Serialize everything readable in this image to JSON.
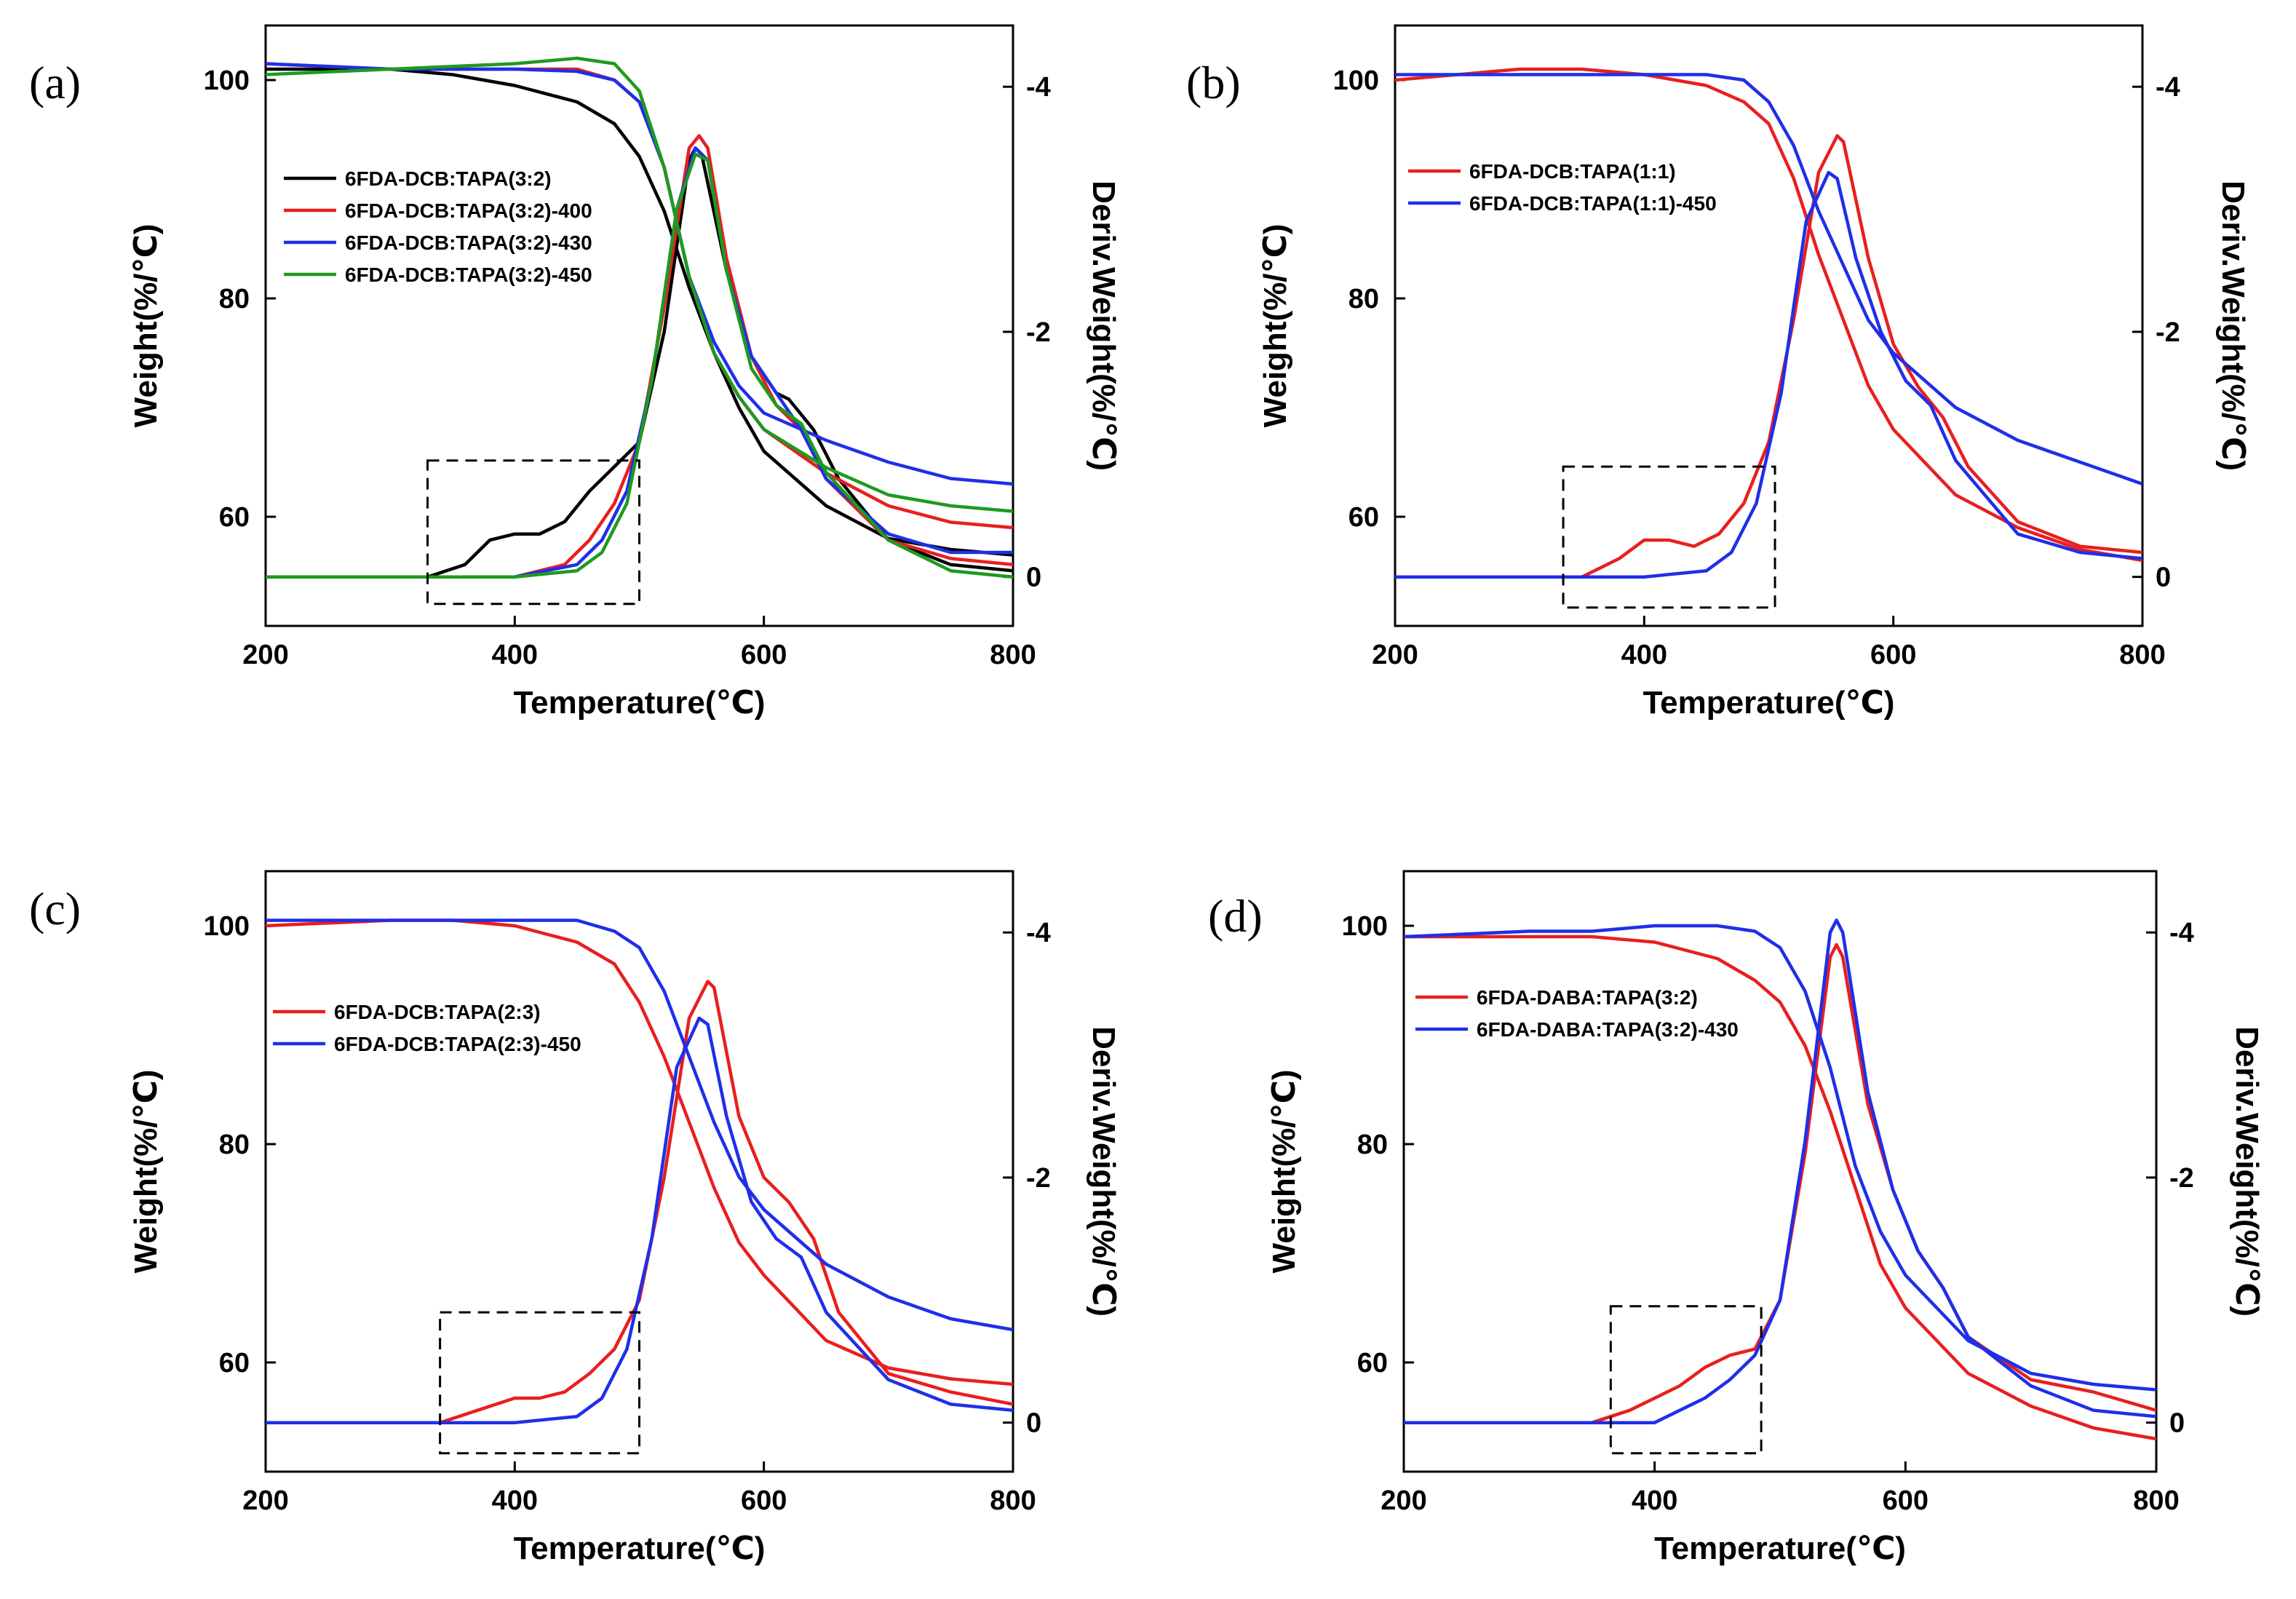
{
  "chart_data": [
    {
      "type": "line",
      "panel_label": "(a)",
      "xlabel": "Temperature(℃)",
      "ylabel": "Weight(%/℃)",
      "y2label": "Deriv.Weight(%/℃)",
      "xlim": [
        200,
        800
      ],
      "ylim": [
        50,
        105
      ],
      "y2lim": [
        0.4,
        -4.5
      ],
      "xticks": [
        200,
        400,
        600,
        800
      ],
      "yticks": [
        60,
        80,
        100
      ],
      "y2ticks": [
        0,
        -2,
        -4
      ],
      "legend_position": "center-left",
      "dashed_box": {
        "x": [
          330,
          500
        ],
        "y2": [
          0.22,
          -0.95
        ]
      },
      "series": [
        {
          "name": "6FDA-DCB:TAPA(3:2)",
          "color": "#000000",
          "weight": {
            "x": [
              200,
              300,
              350,
              400,
              450,
              480,
              500,
              520,
              540,
              560,
              580,
              600,
              650,
              700,
              750,
              800
            ],
            "y": [
              101,
              101,
              100.5,
              99.5,
              98,
              96,
              93,
              88,
              81,
              75,
              70,
              66,
              61,
              58,
              57,
              56.5
            ]
          },
          "deriv": {
            "x": [
              200,
              300,
              330,
              360,
              380,
              400,
              420,
              440,
              460,
              480,
              500,
              520,
              540,
              545,
              550,
              570,
              590,
              610,
              620,
              640,
              660,
              700,
              750,
              800
            ],
            "y": [
              0,
              0,
              0,
              -0.1,
              -0.3,
              -0.35,
              -0.35,
              -0.45,
              -0.7,
              -0.9,
              -1.1,
              -2.0,
              -3.4,
              -3.5,
              -3.45,
              -2.5,
              -1.8,
              -1.5,
              -1.45,
              -1.2,
              -0.8,
              -0.3,
              -0.1,
              -0.05
            ]
          }
        },
        {
          "name": "6FDA-DCB:TAPA(3:2)-400",
          "color": "#e81f1f",
          "weight": {
            "x": [
              200,
              300,
              400,
              450,
              480,
              500,
              520,
              540,
              560,
              580,
              600,
              650,
              700,
              750,
              800
            ],
            "y": [
              101.5,
              101,
              101,
              101,
              100,
              98,
              92,
              82,
              75,
              71,
              68,
              64,
              61,
              59.5,
              59
            ]
          },
          "deriv": {
            "x": [
              200,
              300,
              400,
              440,
              460,
              480,
              500,
              520,
              540,
              548,
              555,
              570,
              590,
              610,
              630,
              650,
              700,
              750,
              800
            ],
            "y": [
              0,
              0,
              0,
              -0.1,
              -0.3,
              -0.6,
              -1.1,
              -2.2,
              -3.5,
              -3.6,
              -3.5,
              -2.6,
              -1.8,
              -1.4,
              -1.2,
              -0.8,
              -0.3,
              -0.15,
              -0.1
            ]
          }
        },
        {
          "name": "6FDA-DCB:TAPA(3:2)-430",
          "color": "#1f2fe8",
          "weight": {
            "x": [
              200,
              300,
              400,
              450,
              480,
              500,
              520,
              540,
              560,
              580,
              600,
              650,
              700,
              750,
              800
            ],
            "y": [
              101.5,
              101,
              101,
              100.8,
              100,
              98,
              92,
              82,
              76,
              72,
              69.5,
              67,
              65,
              63.5,
              63
            ]
          },
          "deriv": {
            "x": [
              200,
              300,
              400,
              450,
              470,
              490,
              510,
              530,
              545,
              555,
              570,
              590,
              610,
              630,
              650,
              700,
              750,
              800
            ],
            "y": [
              0,
              0,
              0,
              -0.1,
              -0.3,
              -0.7,
              -1.6,
              -3.0,
              -3.5,
              -3.4,
              -2.5,
              -1.8,
              -1.5,
              -1.2,
              -0.8,
              -0.35,
              -0.2,
              -0.2
            ]
          }
        },
        {
          "name": "6FDA-DCB:TAPA(3:2)-450",
          "color": "#1e9a1e",
          "weight": {
            "x": [
              200,
              300,
              400,
              450,
              480,
              500,
              520,
              540,
              560,
              580,
              600,
              650,
              700,
              750,
              800
            ],
            "y": [
              100.5,
              101,
              101.5,
              102,
              101.5,
              99,
              92,
              82,
              75,
              71,
              68,
              64.5,
              62,
              61,
              60.5
            ]
          },
          "deriv": {
            "x": [
              200,
              300,
              400,
              450,
              470,
              490,
              510,
              530,
              545,
              555,
              570,
              590,
              610,
              630,
              650,
              700,
              750,
              800
            ],
            "y": [
              0,
              0,
              0,
              -0.05,
              -0.2,
              -0.6,
              -1.6,
              -3.0,
              -3.45,
              -3.4,
              -2.5,
              -1.7,
              -1.4,
              -1.25,
              -0.85,
              -0.3,
              -0.05,
              0
            ]
          }
        }
      ]
    },
    {
      "type": "line",
      "panel_label": "(b)",
      "xlabel": "Temperature(℃)",
      "ylabel": "Weight(%/℃)",
      "y2label": "Deriv.Weight(%/℃)",
      "xlim": [
        200,
        800
      ],
      "ylim": [
        50,
        105
      ],
      "y2lim": [
        0.4,
        -4.5
      ],
      "xticks": [
        200,
        400,
        600,
        800
      ],
      "yticks": [
        60,
        80,
        100
      ],
      "y2ticks": [
        0,
        -2,
        -4
      ],
      "legend_position": "top-left",
      "dashed_box": {
        "x": [
          335,
          505
        ],
        "y2": [
          0.25,
          -0.9
        ]
      },
      "series": [
        {
          "name": "6FDA-DCB:TAPA(1:1)",
          "color": "#e81f1f",
          "weight": {
            "x": [
              200,
              300,
              350,
              400,
              450,
              480,
              500,
              520,
              540,
              560,
              580,
              600,
              650,
              700,
              750,
              800
            ],
            "y": [
              100,
              101,
              101,
              100.5,
              99.5,
              98,
              96,
              91,
              84,
              78,
              72,
              68,
              62,
              59,
              57,
              56
            ]
          },
          "deriv": {
            "x": [
              200,
              300,
              350,
              380,
              400,
              420,
              440,
              460,
              480,
              500,
              520,
              540,
              555,
              560,
              580,
              600,
              620,
              640,
              660,
              700,
              750,
              800
            ],
            "y": [
              0,
              0,
              0,
              -0.15,
              -0.3,
              -0.3,
              -0.25,
              -0.35,
              -0.6,
              -1.1,
              -2.1,
              -3.3,
              -3.6,
              -3.55,
              -2.6,
              -1.9,
              -1.55,
              -1.3,
              -0.9,
              -0.45,
              -0.25,
              -0.2
            ]
          }
        },
        {
          "name": "6FDA-DCB:TAPA(1:1)-450",
          "color": "#1f2fe8",
          "weight": {
            "x": [
              200,
              300,
              400,
              450,
              480,
              500,
              520,
              540,
              560,
              580,
              600,
              650,
              700,
              750,
              800
            ],
            "y": [
              100.5,
              100.5,
              100.5,
              100.5,
              100,
              98,
              94,
              88,
              83,
              78,
              75,
              70,
              67,
              65,
              63
            ]
          },
          "deriv": {
            "x": [
              200,
              300,
              400,
              450,
              470,
              490,
              510,
              530,
              548,
              555,
              570,
              590,
              610,
              630,
              650,
              700,
              750,
              800
            ],
            "y": [
              0,
              0,
              0,
              -0.05,
              -0.2,
              -0.6,
              -1.5,
              -2.9,
              -3.3,
              -3.25,
              -2.6,
              -2.0,
              -1.6,
              -1.4,
              -0.95,
              -0.35,
              -0.2,
              -0.15
            ]
          }
        }
      ]
    },
    {
      "type": "line",
      "panel_label": "(c)",
      "xlabel": "Temperature(℃)",
      "ylabel": "Weight(%/℃)",
      "y2label": "Deriv.Weight(%/℃)",
      "xlim": [
        200,
        800
      ],
      "ylim": [
        50,
        105
      ],
      "y2lim": [
        0.4,
        -4.5
      ],
      "xticks": [
        200,
        400,
        600,
        800
      ],
      "yticks": [
        60,
        80,
        100
      ],
      "y2ticks": [
        0,
        -2,
        -4
      ],
      "legend_position": "center-left",
      "dashed_box": {
        "x": [
          340,
          500
        ],
        "y2": [
          0.25,
          -0.9
        ]
      },
      "series": [
        {
          "name": "6FDA-DCB:TAPA(2:3)",
          "color": "#e81f1f",
          "weight": {
            "x": [
              200,
              300,
              350,
              400,
              450,
              480,
              500,
              520,
              540,
              560,
              580,
              600,
              650,
              700,
              750,
              800
            ],
            "y": [
              100,
              100.5,
              100.5,
              100,
              98.5,
              96.5,
              93,
              88,
              82,
              76,
              71,
              68,
              62,
              59.5,
              58.5,
              58
            ]
          },
          "deriv": {
            "x": [
              200,
              300,
              340,
              370,
              400,
              420,
              440,
              460,
              480,
              500,
              520,
              540,
              555,
              560,
              580,
              600,
              620,
              640,
              660,
              700,
              750,
              800
            ],
            "y": [
              0,
              0,
              0,
              -0.1,
              -0.2,
              -0.2,
              -0.25,
              -0.4,
              -0.6,
              -1.0,
              -2.0,
              -3.3,
              -3.6,
              -3.55,
              -2.5,
              -2.0,
              -1.8,
              -1.5,
              -0.9,
              -0.4,
              -0.25,
              -0.15
            ]
          }
        },
        {
          "name": "6FDA-DCB:TAPA(2:3)-450",
          "color": "#1f2fe8",
          "weight": {
            "x": [
              200,
              300,
              400,
              450,
              480,
              500,
              520,
              540,
              560,
              580,
              600,
              650,
              700,
              750,
              800
            ],
            "y": [
              100.5,
              100.5,
              100.5,
              100.5,
              99.5,
              98,
              94,
              88,
              82,
              77,
              74,
              69,
              66,
              64,
              63
            ]
          },
          "deriv": {
            "x": [
              200,
              300,
              400,
              450,
              470,
              490,
              510,
              530,
              548,
              555,
              570,
              590,
              610,
              630,
              650,
              700,
              750,
              800
            ],
            "y": [
              0,
              0,
              0,
              -0.05,
              -0.2,
              -0.6,
              -1.5,
              -2.9,
              -3.3,
              -3.25,
              -2.5,
              -1.8,
              -1.5,
              -1.35,
              -0.9,
              -0.35,
              -0.15,
              -0.1
            ]
          }
        }
      ]
    },
    {
      "type": "line",
      "panel_label": "(d)",
      "xlabel": "Temperature(℃)",
      "ylabel": "Weight(%/℃)",
      "y2label": "Deriv.Weight(%/℃)",
      "xlim": [
        200,
        800
      ],
      "ylim": [
        50,
        105
      ],
      "y2lim": [
        0.4,
        -4.5
      ],
      "xticks": [
        200,
        400,
        600,
        800
      ],
      "yticks": [
        60,
        80,
        100
      ],
      "y2ticks": [
        0,
        -2,
        -4
      ],
      "legend_position": "center-left",
      "dashed_box": {
        "x": [
          365,
          485
        ],
        "y2": [
          0.25,
          -0.95
        ]
      },
      "series": [
        {
          "name": "6FDA-DABA:TAPA(3:2)",
          "color": "#e81f1f",
          "weight": {
            "x": [
              200,
              300,
              350,
              400,
              450,
              480,
              500,
              520,
              540,
              560,
              580,
              600,
              650,
              700,
              750,
              800
            ],
            "y": [
              99,
              99,
              99,
              98.5,
              97,
              95,
              93,
              89,
              83,
              76,
              69,
              65,
              59,
              56,
              54,
              53
            ]
          },
          "deriv": {
            "x": [
              200,
              300,
              350,
              380,
              400,
              420,
              440,
              460,
              480,
              500,
              520,
              540,
              545,
              550,
              570,
              590,
              610,
              630,
              650,
              700,
              750,
              800
            ],
            "y": [
              0,
              0,
              0,
              -0.1,
              -0.2,
              -0.3,
              -0.45,
              -0.55,
              -0.6,
              -1.0,
              -2.2,
              -3.8,
              -3.9,
              -3.8,
              -2.6,
              -1.9,
              -1.4,
              -1.1,
              -0.7,
              -0.35,
              -0.25,
              -0.1
            ]
          }
        },
        {
          "name": "6FDA-DABA:TAPA(3:2)-430",
          "color": "#1f2fe8",
          "weight": {
            "x": [
              200,
              300,
              350,
              400,
              450,
              480,
              500,
              520,
              540,
              560,
              580,
              600,
              650,
              700,
              750,
              800
            ],
            "y": [
              99,
              99.5,
              99.5,
              100,
              100,
              99.5,
              98,
              94,
              87,
              78,
              72,
              68,
              62,
              59,
              58,
              57.5
            ]
          },
          "deriv": {
            "x": [
              200,
              300,
              350,
              380,
              400,
              420,
              440,
              460,
              480,
              500,
              520,
              540,
              545,
              550,
              570,
              590,
              610,
              630,
              650,
              700,
              750,
              800
            ],
            "y": [
              0,
              0,
              0,
              0,
              0,
              -0.1,
              -0.2,
              -0.35,
              -0.55,
              -1.0,
              -2.3,
              -4.0,
              -4.1,
              -4.0,
              -2.7,
              -1.9,
              -1.4,
              -1.1,
              -0.7,
              -0.3,
              -0.1,
              -0.05
            ]
          }
        }
      ]
    }
  ]
}
